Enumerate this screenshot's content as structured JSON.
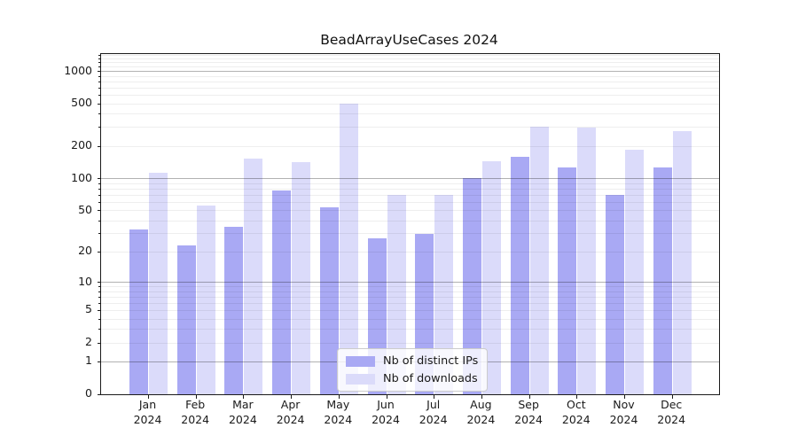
{
  "title": "BeadArrayUseCases 2024",
  "chart_data": {
    "type": "bar",
    "title": "BeadArrayUseCases 2024",
    "categories": [
      "Jan 2024",
      "Feb 2024",
      "Mar 2024",
      "Apr 2024",
      "May 2024",
      "Jun 2024",
      "Jul 2024",
      "Aug 2024",
      "Sep 2024",
      "Oct 2024",
      "Nov 2024",
      "Dec 2024"
    ],
    "x_tick_months": [
      "Jan",
      "Feb",
      "Mar",
      "Apr",
      "May",
      "Jun",
      "Jul",
      "Aug",
      "Sep",
      "Oct",
      "Nov",
      "Dec"
    ],
    "x_tick_year": "2024",
    "series": [
      {
        "name": "Nb of distinct IPs",
        "color": "#a9a9f4",
        "values": [
          33,
          23,
          35,
          78,
          54,
          27,
          30,
          101,
          160,
          126,
          70,
          128
        ]
      },
      {
        "name": "Nb of downloads",
        "color": "#dbdbfa",
        "values": [
          113,
          56,
          155,
          142,
          500,
          70,
          70,
          145,
          306,
          300,
          185,
          278
        ]
      }
    ],
    "xlabel": "",
    "ylabel": "",
    "yscale": "log10(1+x)",
    "ylim": [
      0,
      1450
    ],
    "y_tick_labels": [
      0,
      1,
      2,
      5,
      10,
      20,
      50,
      100,
      200,
      500,
      1000
    ],
    "grid": "horizontal major at decades (1,10,100,1000), light minors at 2-9 per decade",
    "legend_position": "inside lower center"
  },
  "legend": {
    "items": [
      {
        "label": "Nb of distinct IPs",
        "color": "#a9a9f4"
      },
      {
        "label": "Nb of downloads",
        "color": "#dbdbfa"
      }
    ]
  },
  "colors": {
    "background": "#ffffff",
    "spine": "#1a1a1a",
    "major_grid": "#adadad",
    "minor_grid": "#ececec",
    "text": "#1a1a1a"
  }
}
